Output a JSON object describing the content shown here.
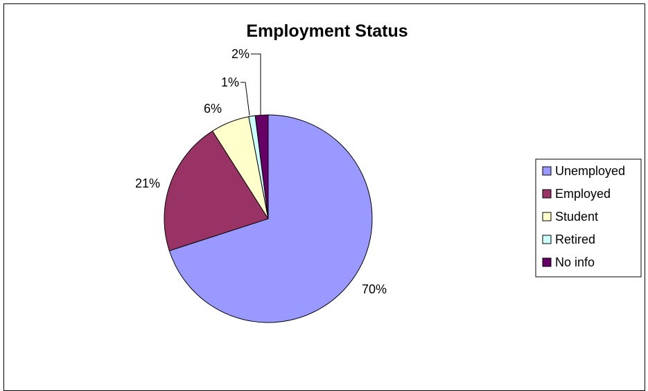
{
  "chart_data": {
    "type": "pie",
    "title": "Employment Status",
    "categories": [
      "Unemployed",
      "Employed",
      "Student",
      "Retired",
      "No info"
    ],
    "values": [
      70,
      21,
      6,
      1,
      2
    ],
    "labels": [
      "70%",
      "21%",
      "6%",
      "1%",
      "2%"
    ],
    "colors": [
      "#9999ff",
      "#993366",
      "#ffffcc",
      "#ccffff",
      "#660066"
    ],
    "start_angle": "12 o'clock",
    "direction": "clockwise",
    "legend_position": "right"
  }
}
